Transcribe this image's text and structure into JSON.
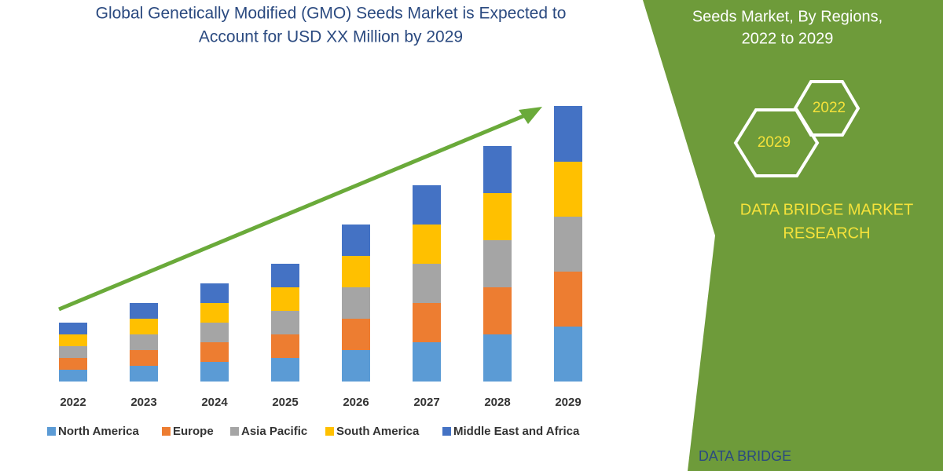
{
  "chart_data": {
    "type": "bar",
    "stacked": true,
    "title": [
      "Global Genetically Modified (GMO) Seeds Market is Expected to",
      "Account for USD XX Million by 2029"
    ],
    "panel_text": [
      "Seeds Market, By Regions,",
      "2022 to 2029"
    ],
    "hexagons": [
      "2022",
      "2029"
    ],
    "brand": [
      "DATA BRIDGE MARKET",
      "RESEARCH"
    ],
    "logo": "DATA BRIDGE",
    "categories": [
      "2022",
      "2023",
      "2024",
      "2025",
      "2026",
      "2027",
      "2028",
      "2029"
    ],
    "series": [
      {
        "name": "North America",
        "color": "#5b9bd5",
        "values": [
          15,
          20,
          25,
          30,
          40,
          50,
          60,
          70
        ]
      },
      {
        "name": "Europe",
        "color": "#ed7d31",
        "values": [
          15,
          20,
          25,
          30,
          40,
          50,
          60,
          70
        ]
      },
      {
        "name": "Asia Pacific",
        "color": "#a5a5a5",
        "values": [
          15,
          20,
          25,
          30,
          40,
          50,
          60,
          70
        ]
      },
      {
        "name": "South America",
        "color": "#ffc000",
        "values": [
          15,
          20,
          25,
          30,
          40,
          50,
          60,
          70
        ]
      },
      {
        "name": "Middle East and Africa",
        "color": "#4472c4",
        "values": [
          15,
          20,
          25,
          30,
          40,
          50,
          60,
          71
        ]
      }
    ],
    "ylim": [
      0,
      360
    ]
  }
}
